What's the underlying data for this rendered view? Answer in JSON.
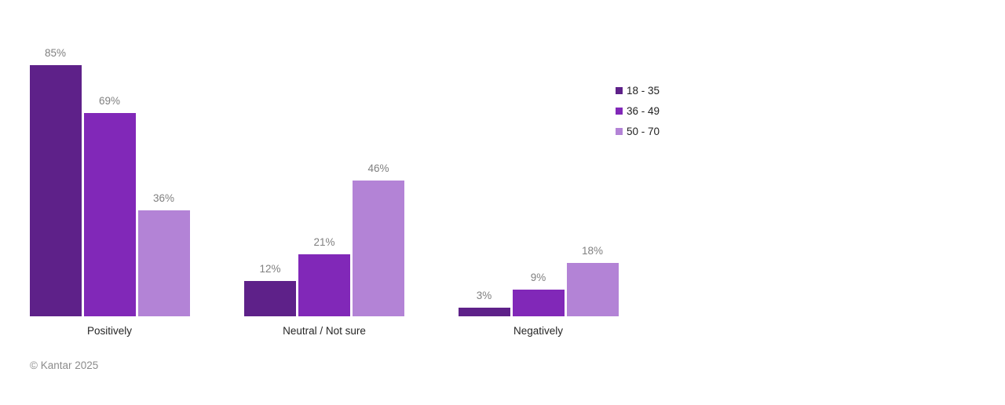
{
  "chart_data": {
    "type": "bar",
    "categories": [
      "Positively",
      "Neutral / Not sure",
      "Negatively"
    ],
    "series": [
      {
        "name": "18 - 35",
        "color": "#5e2189",
        "values": [
          85,
          12,
          3
        ]
      },
      {
        "name": "36 - 49",
        "color": "#8128b8",
        "values": [
          69,
          21,
          9
        ]
      },
      {
        "name": "50 - 70",
        "color": "#b383d6",
        "values": [
          36,
          46,
          18
        ]
      }
    ],
    "value_suffix": "%",
    "title": "",
    "xlabel": "",
    "ylabel": "",
    "ylim": [
      0,
      100
    ],
    "grid": false,
    "axes_visible": false,
    "value_labels_position": "above bars",
    "legend_position": "top-right",
    "value_label_color": "#808080",
    "category_label_color": "#262626"
  },
  "footer": {
    "copyright": "© Kantar 2025"
  }
}
